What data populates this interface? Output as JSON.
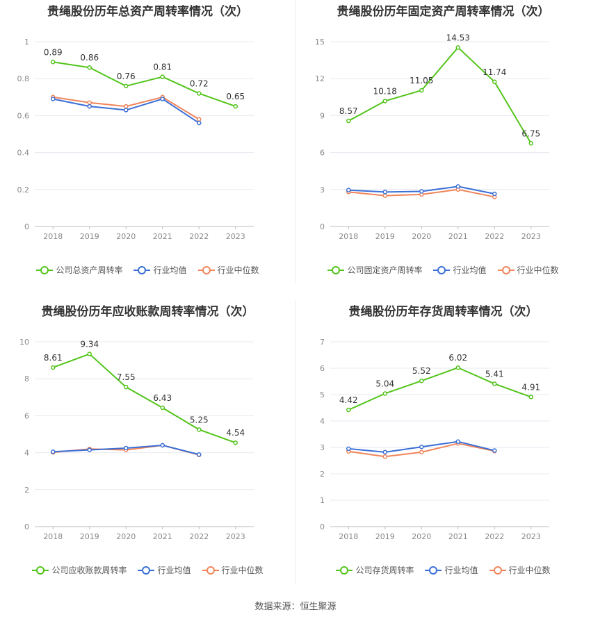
{
  "chart_data": [
    {
      "type": "line",
      "title": "贵绳股份历年总资产周转率情况（次）",
      "categories": [
        "2018",
        "2019",
        "2020",
        "2021",
        "2022",
        "2023"
      ],
      "yticks": [
        "0",
        "0.2",
        "0.4",
        "0.6",
        "0.8",
        "1"
      ],
      "ylim": [
        0,
        1
      ],
      "grid": true,
      "legend_position": "bottom",
      "series": [
        {
          "name": "公司总资产周转率",
          "color": "#52c41a",
          "values": [
            0.89,
            0.86,
            0.76,
            0.81,
            0.72,
            0.65
          ],
          "labels": [
            "0.89",
            "0.86",
            "0.76",
            "0.81",
            "0.72",
            "0.65"
          ]
        },
        {
          "name": "行业均值",
          "color": "#3b6fd6",
          "values": [
            0.69,
            0.65,
            0.63,
            0.69,
            0.56,
            null
          ]
        },
        {
          "name": "行业中位数",
          "color": "#f0845a",
          "values": [
            0.7,
            0.67,
            0.65,
            0.7,
            0.58,
            null
          ]
        }
      ]
    },
    {
      "type": "line",
      "title": "贵绳股份历年固定资产周转率情况（次）",
      "categories": [
        "2018",
        "2019",
        "2020",
        "2021",
        "2022",
        "2023"
      ],
      "yticks": [
        "0",
        "3",
        "6",
        "9",
        "12",
        "15"
      ],
      "ylim": [
        0,
        15
      ],
      "grid": true,
      "legend_position": "bottom",
      "series": [
        {
          "name": "公司固定资产周转率",
          "color": "#52c41a",
          "values": [
            8.57,
            10.18,
            11.05,
            14.53,
            11.74,
            6.75
          ],
          "labels": [
            "8.57",
            "10.18",
            "11.05",
            "14.53",
            "11.74",
            "6.75"
          ]
        },
        {
          "name": "行业均值",
          "color": "#3b6fd6",
          "values": [
            2.95,
            2.8,
            2.85,
            3.25,
            2.65,
            null
          ]
        },
        {
          "name": "行业中位数",
          "color": "#f0845a",
          "values": [
            2.8,
            2.5,
            2.6,
            3.0,
            2.4,
            null
          ]
        }
      ]
    },
    {
      "type": "line",
      "title": "贵绳股份历年应收账款周转率情况（次）",
      "categories": [
        "2018",
        "2019",
        "2020",
        "2021",
        "2022",
        "2023"
      ],
      "yticks": [
        "0",
        "2",
        "4",
        "6",
        "8",
        "10"
      ],
      "ylim": [
        0,
        10
      ],
      "grid": true,
      "legend_position": "bottom",
      "series": [
        {
          "name": "公司应收账款周转率",
          "color": "#52c41a",
          "values": [
            8.61,
            9.34,
            7.55,
            6.43,
            5.25,
            4.54
          ],
          "labels": [
            "8.61",
            "9.34",
            "7.55",
            "6.43",
            "5.25",
            "4.54"
          ]
        },
        {
          "name": "行业均值",
          "color": "#3b6fd6",
          "values": [
            4.05,
            4.15,
            4.25,
            4.4,
            3.9,
            null
          ]
        },
        {
          "name": "行业中位数",
          "color": "#f0845a",
          "values": [
            4.02,
            4.2,
            4.15,
            4.4,
            3.88,
            null
          ]
        }
      ]
    },
    {
      "type": "line",
      "title": "贵绳股份历年存货周转率情况（次）",
      "categories": [
        "2018",
        "2019",
        "2020",
        "2021",
        "2022",
        "2023"
      ],
      "yticks": [
        "0",
        "1",
        "2",
        "3",
        "4",
        "5",
        "6",
        "7"
      ],
      "ylim": [
        0,
        7
      ],
      "grid": true,
      "legend_position": "bottom",
      "series": [
        {
          "name": "公司存货周转率",
          "color": "#52c41a",
          "values": [
            4.42,
            5.04,
            5.52,
            6.02,
            5.41,
            4.91
          ],
          "labels": [
            "4.42",
            "5.04",
            "5.52",
            "6.02",
            "5.41",
            "4.91"
          ]
        },
        {
          "name": "行业均值",
          "color": "#3b6fd6",
          "values": [
            2.95,
            2.82,
            3.02,
            3.22,
            2.88,
            null
          ]
        },
        {
          "name": "行业中位数",
          "color": "#f0845a",
          "values": [
            2.85,
            2.65,
            2.82,
            3.15,
            2.86,
            null
          ]
        }
      ]
    }
  ],
  "source": "数据来源：恒生聚源"
}
